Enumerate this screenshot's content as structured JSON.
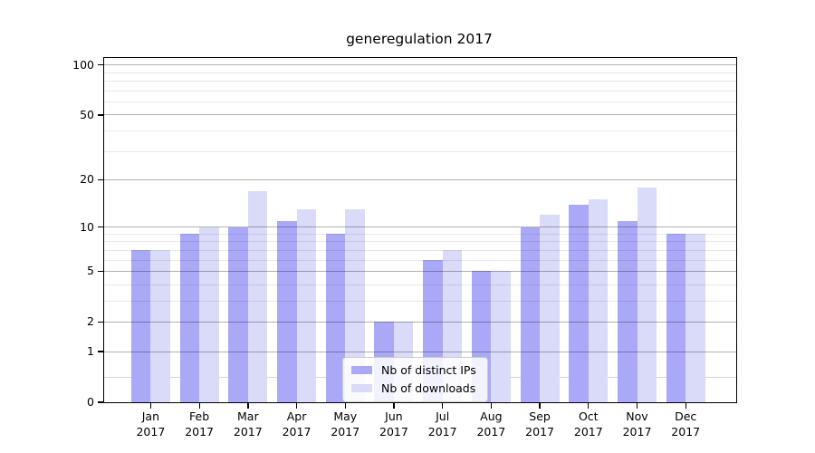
{
  "chart_data": {
    "type": "bar",
    "title": "generegulation 2017",
    "year_label": "2017",
    "categories": [
      "Jan",
      "Feb",
      "Mar",
      "Apr",
      "May",
      "Jun",
      "Jul",
      "Aug",
      "Sep",
      "Oct",
      "Nov",
      "Dec"
    ],
    "series": [
      {
        "name": "Nb of distinct IPs",
        "color": "#a9a9f8",
        "values": [
          7,
          9,
          10,
          11,
          9,
          2,
          6,
          5,
          10,
          14,
          11,
          9
        ]
      },
      {
        "name": "Nb of downloads",
        "color": "#dadaf9",
        "values": [
          7,
          10,
          17,
          13,
          13,
          2,
          7,
          5,
          12,
          15,
          18,
          9
        ]
      }
    ],
    "y_axis": {
      "scale": "log1p",
      "tick_labels": [
        0,
        1,
        2,
        5,
        10,
        20,
        50,
        100
      ],
      "minor_gridlines": [
        3,
        4,
        6,
        7,
        8,
        9,
        30,
        40,
        60,
        70,
        80,
        90
      ],
      "sub_unit_gridlines": [
        0.4
      ],
      "max": 110
    },
    "grid": "on",
    "legend_position": "bottom-center"
  }
}
